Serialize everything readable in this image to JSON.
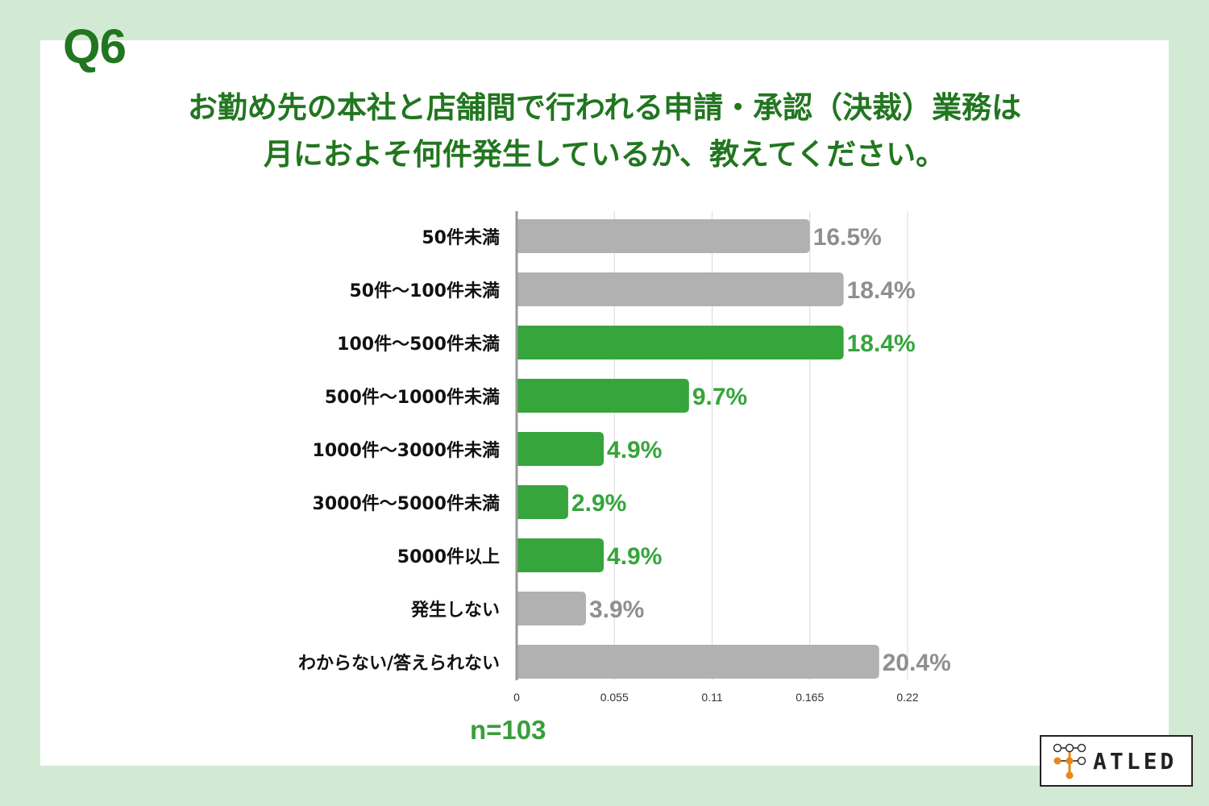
{
  "header": {
    "question_label": "Q6",
    "title_line1": "お勤め先の本社と店舗間で行われる申請・承認（決裁）業務は",
    "title_line2": "月におよそ何件発生しているか、教えてください。"
  },
  "sample_size": "n=103",
  "logo": {
    "text": "ATLED",
    "icon": "atled-node-icon"
  },
  "colors": {
    "title": "#21761f",
    "highlight": "#35a53c",
    "neutral": "#b1b1b1",
    "highlight_label": "#35a53c",
    "neutral_label": "#8f8f8f",
    "panel_bg": "#ffffff",
    "outer_bg": "#d2ead4"
  },
  "chart_data": {
    "type": "bar",
    "orientation": "horizontal",
    "categories": [
      "50件未満",
      "50件〜100件未満",
      "100件〜500件未満",
      "500件〜1000件未満",
      "1000件〜3000件未満",
      "3000件〜5000件未満",
      "5000件以上",
      "発生しない",
      "わからない/答えられない"
    ],
    "values": [
      0.165,
      0.184,
      0.184,
      0.097,
      0.049,
      0.029,
      0.049,
      0.039,
      0.204
    ],
    "value_labels": [
      "16.5%",
      "18.4%",
      "18.4%",
      "9.7%",
      "4.9%",
      "2.9%",
      "4.9%",
      "3.9%",
      "20.4%"
    ],
    "highlighted": [
      false,
      false,
      true,
      true,
      true,
      true,
      true,
      false,
      false
    ],
    "xlim": [
      0,
      0.22
    ],
    "x_ticks": [
      0,
      0.055,
      0.11,
      0.165,
      0.22
    ],
    "x_tick_labels": [
      "0",
      "0.055",
      "0.11",
      "0.165",
      "0.22"
    ],
    "grid": true,
    "legend": "none"
  }
}
